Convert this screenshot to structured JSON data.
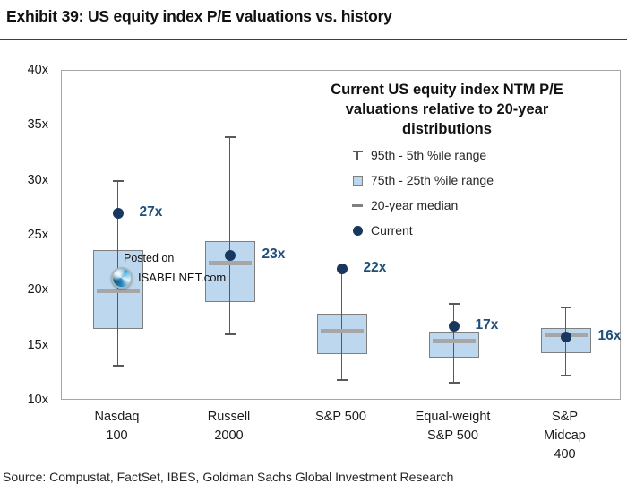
{
  "exhibit_title": "Exhibit 39: US equity index P/E valuations vs. history",
  "source": "Source: Compustat, FactSet, IBES, Goldman Sachs Global Investment Research",
  "watermark": {
    "line1": "Posted on",
    "line2": "ISABELNET.com",
    "logo": "isabelnet-globe-logo"
  },
  "chart_data": {
    "type": "boxplot",
    "title": "Current US equity index NTM P/E valuations relative to 20-year distributions",
    "title_lines": [
      "Current US equity index NTM P/E",
      "valuations relative to 20-year",
      "distributions"
    ],
    "legend_position": "top-right-inside",
    "grid": false,
    "legend": [
      {
        "marker": "whisker-icon",
        "label": "95th - 5th %ile range"
      },
      {
        "marker": "box-icon",
        "label": "75th - 25th %ile range"
      },
      {
        "marker": "median-dash-icon",
        "label": "20-year median"
      },
      {
        "marker": "current-dot-icon",
        "label": "Current"
      }
    ],
    "y_axis": {
      "min": 10,
      "max": 40,
      "step": 5,
      "tick_suffix": "x",
      "ticks": [
        "40x",
        "35x",
        "30x",
        "25x",
        "20x",
        "15x",
        "10x"
      ]
    },
    "categories": [
      "Nasdaq 100",
      "Russell 2000",
      "S&P 500",
      "Equal-weight S&P 500",
      "S&P Midcap 400"
    ],
    "series": [
      {
        "category_lines": [
          "Nasdaq",
          "100"
        ],
        "p5": 13.2,
        "p25": 16.5,
        "median": 20,
        "p75": 23.7,
        "p95": 30,
        "current": 27,
        "current_label": "27x"
      },
      {
        "category_lines": [
          "Russell",
          "2000"
        ],
        "p5": 16,
        "p25": 19,
        "median": 22.5,
        "p75": 24.5,
        "p95": 34,
        "current": 23.2,
        "current_label": "23x"
      },
      {
        "category_lines": [
          "S&P 500"
        ],
        "p5": 11.9,
        "p25": 14.2,
        "median": 16.3,
        "p75": 17.9,
        "p95": 22,
        "current": 22,
        "current_label": "22x"
      },
      {
        "category_lines": [
          "Equal-weight",
          "S&P 500"
        ],
        "p5": 11.6,
        "p25": 13.9,
        "median": 15.4,
        "p75": 16.3,
        "p95": 18.8,
        "current": 16.8,
        "current_label": "17x"
      },
      {
        "category_lines": [
          "S&P Midcap",
          "400"
        ],
        "p5": 12.3,
        "p25": 14.3,
        "median": 16,
        "p75": 16.6,
        "p95": 18.5,
        "current": 15.8,
        "current_label": "16x"
      }
    ],
    "colors": {
      "box_fill": "#bdd7ee",
      "box_border": "#7f7f7f",
      "median_bar": "#a6a6a6",
      "whisker": "#595959",
      "current_dot": "#17375e",
      "value_label": "#1f4e79",
      "plot_border": "#a6a6a6"
    }
  }
}
